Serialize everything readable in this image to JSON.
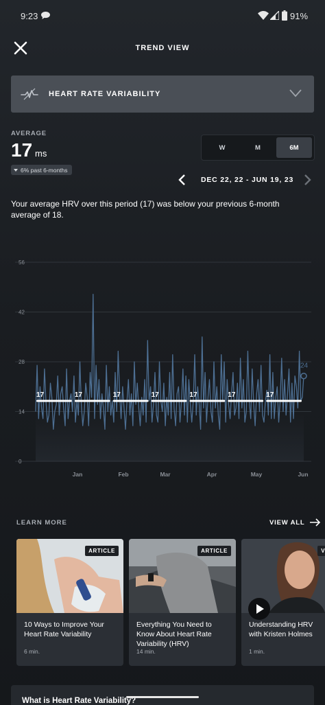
{
  "status_bar": {
    "time": "9:23",
    "battery_pct": "91%"
  },
  "header": {
    "title": "TREND VIEW",
    "close_icon": "close-icon"
  },
  "metric_select": {
    "label": "HEART RATE VARIABILITY",
    "icon": "hrv-pulse-icon"
  },
  "average": {
    "label": "AVERAGE",
    "value": "17",
    "unit": "ms",
    "change": "6% past 6-months"
  },
  "range_options": [
    {
      "label": "W",
      "active": false
    },
    {
      "label": "M",
      "active": false
    },
    {
      "label": "6M",
      "active": true
    }
  ],
  "date_nav": {
    "range": "DEC 22, 22 - JUN 19, 23"
  },
  "summary": "Your average HRV over this period (17) was below your previous 6-month average of 18.",
  "chart_data": {
    "type": "line",
    "ylim": [
      0,
      56
    ],
    "yticks": [
      0,
      14,
      28,
      42,
      56
    ],
    "x_tick_labels": [
      "Jan",
      "Feb",
      "Mar",
      "Apr",
      "May",
      "Jun"
    ],
    "last_value_label": "24",
    "series": [
      {
        "values": [
          14,
          27,
          12,
          21,
          15,
          12,
          26,
          17,
          11,
          13,
          22,
          18,
          9,
          14,
          16,
          24,
          13,
          19,
          21,
          15,
          10,
          26,
          12,
          17,
          19,
          14,
          24,
          11,
          17,
          13,
          28,
          16,
          10,
          14,
          22,
          18,
          10,
          25,
          18,
          47,
          12,
          27,
          16,
          23,
          12,
          19,
          15,
          9,
          27,
          14,
          21,
          13,
          17,
          11,
          25,
          14,
          31,
          19,
          12,
          21,
          15,
          9,
          17,
          23,
          13,
          19,
          10,
          28,
          16,
          22,
          15,
          10,
          18,
          13,
          23,
          11,
          34,
          17,
          21,
          11,
          16,
          25,
          13,
          11,
          28,
          17,
          14,
          22,
          10,
          18,
          13,
          25,
          12,
          30,
          15,
          10,
          19,
          21,
          11,
          17,
          26,
          13,
          24,
          11,
          23,
          16,
          11,
          17,
          30,
          13,
          21,
          16,
          9,
          35,
          15,
          25,
          11,
          18,
          23,
          14,
          11,
          28,
          15,
          21,
          13,
          9,
          30,
          17,
          28,
          11,
          23,
          16,
          12,
          19,
          25,
          13,
          15,
          22,
          12,
          29,
          15,
          23,
          11,
          14,
          31,
          17,
          12,
          26,
          16,
          10,
          19,
          23,
          14,
          27,
          13,
          11,
          17,
          20,
          13,
          30,
          12,
          25,
          12,
          18,
          21,
          11,
          17,
          29,
          14,
          23,
          13,
          19,
          26,
          11,
          22,
          12,
          24,
          21,
          15,
          31,
          17,
          18,
          24
        ]
      }
    ],
    "monthly_averages": [
      {
        "label": "17",
        "value": 17
      },
      {
        "label": "17",
        "value": 17
      },
      {
        "label": "17",
        "value": 17
      },
      {
        "label": "17",
        "value": 17
      },
      {
        "label": "17",
        "value": 17
      },
      {
        "label": "17",
        "value": 17
      },
      {
        "label": "17",
        "value": 17
      }
    ]
  },
  "learn_more": {
    "title": "LEARN MORE",
    "view_all": "VIEW ALL",
    "cards": [
      {
        "badge": "ARTICLE",
        "title": "10 Ways to Improve Your Heart Rate Variability",
        "duration": "6 min."
      },
      {
        "badge": "ARTICLE",
        "title": "Everything You Need to Know About Heart Rate Variability (HRV)",
        "duration": "14 min."
      },
      {
        "badge": "VI",
        "title": "Understanding HRV with Kristen Holmes",
        "duration": "1 min."
      }
    ]
  },
  "faq": {
    "title": "What is Heart Rate Variability?"
  },
  "colors": {
    "accent_line": "#4d6f93",
    "avg_bar": "#ffffff",
    "card_bg": "#2b2f35"
  }
}
